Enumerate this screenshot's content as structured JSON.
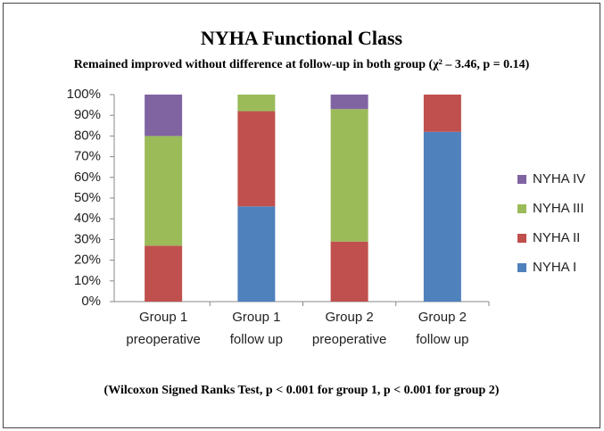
{
  "chart_data": {
    "type": "stacked_bar",
    "title": "NYHA Functional Class",
    "subtitle": "Remained improved without difference at follow-up in both group (χ² – 3.46, p = 0.14)",
    "note": "(Wilcoxon Signed Ranks Test, p < 0.001 for group 1, p < 0.001 for group 2)",
    "categories": [
      [
        "Group 1",
        "preoperative"
      ],
      [
        "Group 1",
        "follow up"
      ],
      [
        "Group 2",
        "preoperative"
      ],
      [
        "Group 2",
        "follow up"
      ]
    ],
    "series": [
      {
        "name": "NYHA I",
        "color": "#4f81bd",
        "values": [
          0,
          46,
          0,
          82
        ]
      },
      {
        "name": "NYHA II",
        "color": "#c0504d",
        "values": [
          27,
          46,
          29,
          18
        ]
      },
      {
        "name": "NYHA III",
        "color": "#9bbb59",
        "values": [
          53,
          8,
          64,
          0
        ]
      },
      {
        "name": "NYHA IV",
        "color": "#8064a2",
        "values": [
          20,
          0,
          7,
          0
        ]
      }
    ],
    "ylim": [
      0,
      100
    ],
    "yticks": [
      {
        "value": 0,
        "label": "0%"
      },
      {
        "value": 10,
        "label": "10%"
      },
      {
        "value": 20,
        "label": "20%"
      },
      {
        "value": 30,
        "label": "30%"
      },
      {
        "value": 40,
        "label": "40%"
      },
      {
        "value": 50,
        "label": "50%"
      },
      {
        "value": 60,
        "label": "60%"
      },
      {
        "value": 70,
        "label": "70%"
      },
      {
        "value": 80,
        "label": "80%"
      },
      {
        "value": 90,
        "label": "90%"
      },
      {
        "value": 100,
        "label": "100%"
      }
    ],
    "legend": "right"
  }
}
